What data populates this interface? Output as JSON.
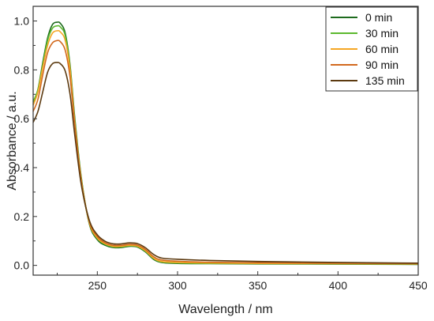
{
  "chart_data": {
    "type": "line",
    "title": "",
    "xlabel": "Wavelength / nm",
    "ylabel": "Absorbance / a.u.",
    "xlim": [
      210,
      450
    ],
    "ylim": [
      -0.04,
      1.06
    ],
    "xticks": [
      250,
      300,
      350,
      400,
      450
    ],
    "yticks": [
      0.0,
      0.2,
      0.4,
      0.6,
      0.8,
      1.0
    ],
    "xtick_labels": [
      "250",
      "300",
      "350",
      "400",
      "450"
    ],
    "ytick_labels": [
      "0.0",
      "0.2",
      "0.4",
      "0.6",
      "0.8",
      "1.0"
    ],
    "grid": false,
    "legend_position": "top-right",
    "series": [
      {
        "name": "0 min",
        "color": "#1e6b1e",
        "x": [
          210,
          213,
          216,
          219,
          222,
          225,
          227,
          230,
          233,
          236,
          240,
          245,
          250,
          255,
          260,
          265,
          270,
          275,
          280,
          285,
          290,
          300,
          320,
          350,
          400,
          450
        ],
        "y": [
          0.66,
          0.72,
          0.83,
          0.93,
          0.985,
          0.995,
          0.99,
          0.95,
          0.82,
          0.6,
          0.36,
          0.17,
          0.105,
          0.082,
          0.073,
          0.073,
          0.078,
          0.075,
          0.055,
          0.025,
          0.012,
          0.008,
          0.007,
          0.006,
          0.005,
          0.004
        ]
      },
      {
        "name": "30 min",
        "color": "#5cb82e",
        "x": [
          210,
          213,
          216,
          219,
          222,
          225,
          227,
          230,
          233,
          236,
          240,
          245,
          250,
          255,
          260,
          265,
          270,
          275,
          280,
          285,
          290,
          300,
          320,
          350,
          400,
          450
        ],
        "y": [
          0.67,
          0.72,
          0.82,
          0.92,
          0.97,
          0.98,
          0.975,
          0.94,
          0.81,
          0.59,
          0.355,
          0.175,
          0.11,
          0.086,
          0.076,
          0.076,
          0.08,
          0.077,
          0.058,
          0.028,
          0.014,
          0.01,
          0.008,
          0.007,
          0.006,
          0.005
        ]
      },
      {
        "name": "60 min",
        "color": "#f5a623",
        "x": [
          210,
          213,
          216,
          219,
          222,
          225,
          227,
          230,
          233,
          236,
          240,
          245,
          250,
          255,
          260,
          265,
          270,
          275,
          280,
          285,
          290,
          300,
          320,
          350,
          400,
          450
        ],
        "y": [
          0.655,
          0.71,
          0.81,
          0.9,
          0.95,
          0.96,
          0.955,
          0.92,
          0.8,
          0.58,
          0.35,
          0.175,
          0.112,
          0.088,
          0.078,
          0.078,
          0.082,
          0.079,
          0.06,
          0.03,
          0.016,
          0.012,
          0.01,
          0.008,
          0.007,
          0.006
        ]
      },
      {
        "name": "90 min",
        "color": "#d2691e",
        "x": [
          210,
          213,
          216,
          219,
          222,
          225,
          227,
          230,
          233,
          236,
          240,
          245,
          250,
          255,
          260,
          265,
          270,
          275,
          280,
          285,
          290,
          300,
          320,
          350,
          400,
          450
        ],
        "y": [
          0.63,
          0.68,
          0.78,
          0.87,
          0.91,
          0.92,
          0.915,
          0.88,
          0.77,
          0.57,
          0.345,
          0.18,
          0.118,
          0.092,
          0.082,
          0.082,
          0.086,
          0.083,
          0.065,
          0.036,
          0.022,
          0.017,
          0.013,
          0.011,
          0.009,
          0.007
        ]
      },
      {
        "name": "135 min",
        "color": "#5c3a10",
        "x": [
          210,
          213,
          216,
          219,
          222,
          225,
          227,
          230,
          233,
          236,
          240,
          245,
          250,
          255,
          260,
          265,
          270,
          275,
          280,
          285,
          290,
          300,
          320,
          350,
          400,
          450
        ],
        "y": [
          0.585,
          0.63,
          0.71,
          0.79,
          0.825,
          0.83,
          0.825,
          0.795,
          0.7,
          0.53,
          0.33,
          0.185,
          0.125,
          0.098,
          0.088,
          0.088,
          0.092,
          0.089,
          0.072,
          0.045,
          0.03,
          0.025,
          0.02,
          0.016,
          0.012,
          0.009
        ]
      }
    ]
  }
}
